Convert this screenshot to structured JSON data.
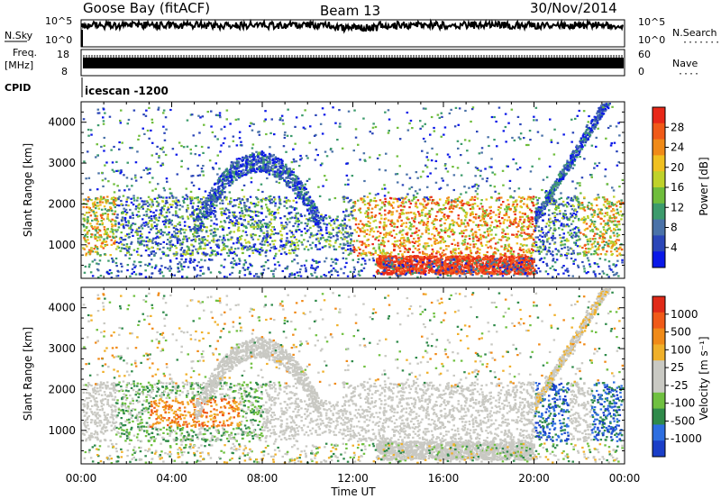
{
  "header": {
    "station": "Goose Bay (fitACF)",
    "beam": "Beam 13",
    "date": "30/Nov/2014"
  },
  "noise_panel": {
    "left_label": "N.Sky",
    "left_ticks": [
      "10^5",
      "10^0"
    ],
    "right_ticks": [
      "10^5",
      "10^0"
    ],
    "right_label": "N.Search"
  },
  "freq_panel": {
    "left_label_top": "Freq.",
    "left_label_bottom": "[MHz]",
    "left_ticks": [
      "18",
      "8"
    ],
    "right_ticks": [
      "60",
      "0"
    ],
    "right_label": "Nave"
  },
  "cpid": {
    "label": "CPID",
    "value": "icescan -1200"
  },
  "chart_data": [
    {
      "type": "heatmap",
      "name": "power",
      "ylabel": "Slant Range [km]",
      "ylim": [
        180,
        4500
      ],
      "yticks": [
        "4000",
        "3000",
        "2000",
        "1000"
      ],
      "colorbar": {
        "label": "Power [dB]",
        "ticks": [
          "28",
          "24",
          "20",
          "16",
          "12",
          "8",
          "4"
        ],
        "colors": [
          "#0a18e8",
          "#2b46b8",
          "#4a72a8",
          "#3c9b6c",
          "#6fbd3c",
          "#bfd22a",
          "#f0c020",
          "#f08a18",
          "#f05a18",
          "#e82818"
        ]
      }
    },
    {
      "type": "heatmap",
      "name": "velocity",
      "ylabel": "Slant Range [km]",
      "ylim": [
        180,
        4500
      ],
      "yticks": [
        "4000",
        "3000",
        "2000",
        "1000"
      ],
      "xlabel": "Time UT",
      "xticks": [
        "00:00",
        "04:00",
        "08:00",
        "12:00",
        "16:00",
        "20:00",
        "00:00"
      ],
      "colorbar": {
        "label": "Velocity [m s⁻¹]",
        "ticks": [
          "1000",
          "500",
          "100",
          "25",
          "-25",
          "-100",
          "-500",
          "-1000"
        ],
        "colors": [
          "#1a3ec8",
          "#2d6ee0",
          "#2f8a4a",
          "#6fc040",
          "#c9c9c3",
          "#c9c9c3",
          "#f0b02a",
          "#f08a18",
          "#f05a18",
          "#e02a18"
        ]
      }
    }
  ]
}
